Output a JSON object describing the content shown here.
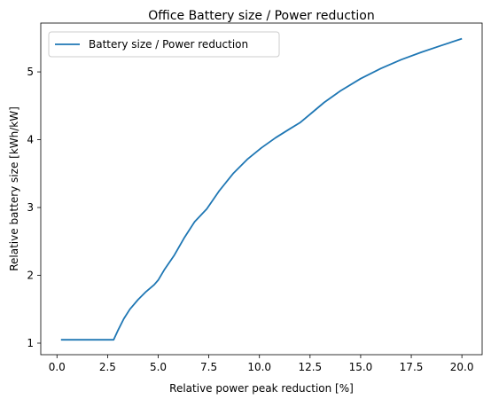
{
  "chart_data": {
    "type": "line",
    "title": "Office Battery size / Power reduction",
    "xlabel": "Relative power peak reduction [%]",
    "ylabel": "Relative battery size [kWh/kW]",
    "xlim": [
      -0.8,
      21.0
    ],
    "ylim": [
      0.83,
      5.72
    ],
    "grid": false,
    "legend_position": "top-left",
    "xticks": [
      0.0,
      2.5,
      5.0,
      7.5,
      10.0,
      12.5,
      15.0,
      17.5,
      20.0
    ],
    "xtick_labels": [
      "0.0",
      "2.5",
      "5.0",
      "7.5",
      "10.0",
      "12.5",
      "15.0",
      "17.5",
      "20.0"
    ],
    "yticks": [
      1,
      2,
      3,
      4,
      5
    ],
    "ytick_labels": [
      "1",
      "2",
      "3",
      "4",
      "5"
    ],
    "series": [
      {
        "name": "Battery size / Power reduction",
        "color": "#1f77b4",
        "x": [
          0.2,
          1.0,
          2.0,
          2.8,
          3.0,
          3.3,
          3.6,
          4.0,
          4.4,
          4.8,
          5.0,
          5.3,
          5.8,
          6.3,
          6.8,
          7.4,
          8.0,
          8.7,
          9.4,
          10.1,
          10.8,
          11.5,
          12.0,
          12.6,
          13.2,
          14.0,
          15.0,
          16.0,
          17.0,
          18.0,
          19.0,
          20.0
        ],
        "y": [
          1.05,
          1.05,
          1.05,
          1.05,
          1.18,
          1.36,
          1.5,
          1.64,
          1.76,
          1.86,
          1.93,
          2.08,
          2.3,
          2.56,
          2.79,
          2.98,
          3.24,
          3.5,
          3.71,
          3.88,
          4.03,
          4.16,
          4.25,
          4.4,
          4.55,
          4.72,
          4.9,
          5.05,
          5.18,
          5.29,
          5.39,
          5.49
        ]
      }
    ]
  }
}
